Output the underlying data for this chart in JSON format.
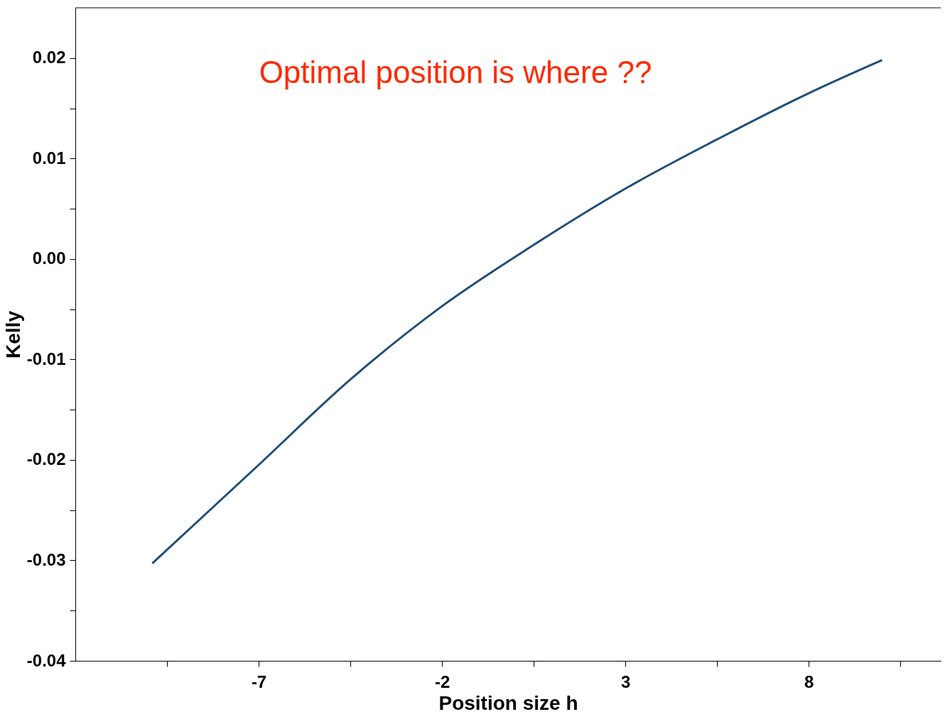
{
  "chart_data": {
    "type": "line",
    "xlabel": "Position size h",
    "ylabel": "Kelly",
    "annotations": [
      "Optimal position is where ??"
    ],
    "x": [
      -9.9,
      -7,
      -4.5,
      -2,
      0.5,
      3,
      5.5,
      8,
      10
    ],
    "series": [
      {
        "color": "#1f4e79",
        "values": [
          -0.0303,
          -0.0205,
          -0.012,
          -0.0047,
          0.0014,
          0.007,
          0.0119,
          0.0165,
          0.0198
        ]
      }
    ],
    "xlim": [
      -12,
      11.6
    ],
    "xticks": [
      {
        "value": -9.5,
        "label": null
      },
      -7,
      {
        "value": -4.5,
        "label": null
      },
      -2,
      {
        "value": 0.5,
        "label": null
      },
      3,
      {
        "value": 5.5,
        "label": null
      },
      8,
      {
        "value": 10.5,
        "label": null
      }
    ],
    "ylim": [
      -0.04,
      0.025
    ],
    "yticks": [
      -0.04,
      {
        "value": -0.035,
        "label": null
      },
      -0.03,
      {
        "value": -0.025,
        "label": null
      },
      -0.02,
      {
        "value": -0.015,
        "label": null
      },
      -0.01,
      {
        "value": -0.005,
        "label": null
      },
      {
        "value": 0,
        "label": "0.00"
      },
      {
        "value": 0.005,
        "label": null
      },
      0.01,
      {
        "value": 0.015,
        "label": null
      },
      0.02
    ],
    "grid": false,
    "marker": "none",
    "line_style": "solid"
  }
}
